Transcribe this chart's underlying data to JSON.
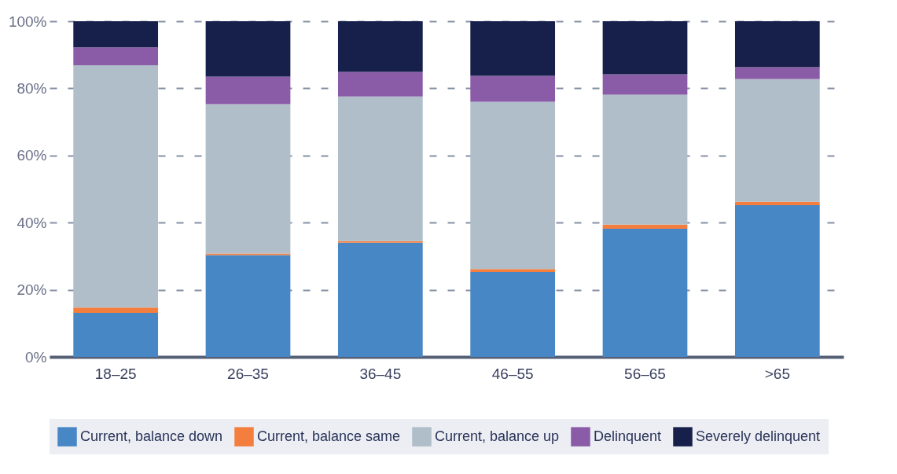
{
  "chart_data": {
    "type": "bar",
    "stacked": true,
    "categories": [
      "18–25",
      "26–35",
      "36–45",
      "46–55",
      "56–65",
      ">65"
    ],
    "series": [
      {
        "name": "Current, balance down",
        "color": "#4887c5",
        "values": [
          13.1,
          30.3,
          34.0,
          25.3,
          38.2,
          45.2
        ]
      },
      {
        "name": "Current, balance same",
        "color": "#f47e3e",
        "values": [
          1.6,
          0.5,
          0.5,
          0.9,
          1.2,
          1.0
        ]
      },
      {
        "name": "Current, balance up",
        "color": "#afbec8",
        "values": [
          72.2,
          44.5,
          43.1,
          49.8,
          38.7,
          36.6
        ]
      },
      {
        "name": "Delinquent",
        "color": "#8a5ca8",
        "values": [
          5.3,
          8.2,
          7.3,
          7.7,
          6.1,
          3.5
        ]
      },
      {
        "name": "Severely delinquent",
        "color": "#16204b",
        "values": [
          7.8,
          16.5,
          15.1,
          16.3,
          15.8,
          13.7
        ]
      }
    ],
    "ylim": [
      0,
      100
    ],
    "yticks": [
      {
        "value": 0,
        "label": "0%"
      },
      {
        "value": 20,
        "label": "20%"
      },
      {
        "value": 40,
        "label": "40%"
      },
      {
        "value": 60,
        "label": "60%"
      },
      {
        "value": 80,
        "label": "80%"
      },
      {
        "value": 100,
        "label": "100%"
      }
    ],
    "grid": "y",
    "legend": "bottom"
  }
}
